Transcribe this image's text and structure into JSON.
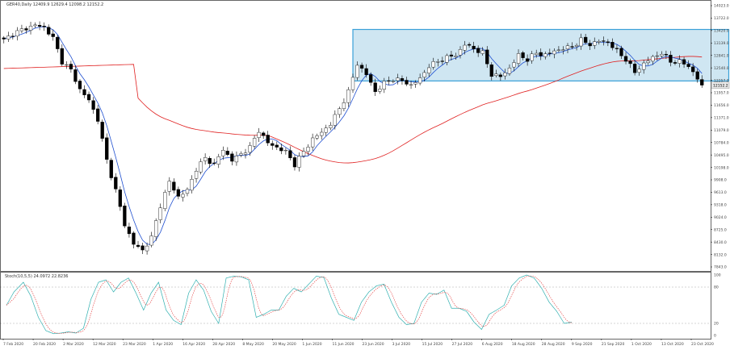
{
  "chart_data": [
    {
      "type": "candlestick",
      "panel": "price",
      "header": "GER40,Daily  12409.9 12629.4 12098.2 12152.2",
      "ylim": [
        7840,
        14080
      ],
      "y_ticks": [
        "14023.0",
        "13722.0",
        "13420.0",
        "13139.0",
        "12841.0",
        "12540.0",
        "12257.0",
        "11957.0",
        "11656.0",
        "11371.0",
        "11079.0",
        "10784.0",
        "10495.0",
        "10198.0",
        "9908.0",
        "9613.0",
        "9318.0",
        "9024.0",
        "8725.0",
        "8430.0",
        "8132.0",
        "7843.0"
      ],
      "x_labels": [
        "7 Feb 2020",
        "20 Feb 2020",
        "2 Mar 2020",
        "12 Mar 2020",
        "23 Mar 2020",
        "1 Apr 2020",
        "16 Apr 2020",
        "28 Apr 2020",
        "8 May 2020",
        "20 May 2020",
        "1 Jun 2020",
        "11 Jun 2020",
        "23 Jun 2020",
        "3 Jul 2020",
        "15 Jul 2020",
        "27 Jul 2020",
        "6 Aug 2020",
        "18 Aug 2020",
        "28 Aug 2020",
        "9 Sep 2020",
        "21 Sep 2020",
        "1 Oct 2020",
        "13 Oct 2020",
        "23 Oct 2020"
      ],
      "current_price_label": "12152.2",
      "close_anchors": [
        [
          0,
          13200
        ],
        [
          2,
          13350
        ],
        [
          5,
          13480
        ],
        [
          7,
          13550
        ],
        [
          9,
          13500
        ],
        [
          11,
          13250
        ],
        [
          13,
          12700
        ],
        [
          15,
          12500
        ],
        [
          17,
          12050
        ],
        [
          19,
          11800
        ],
        [
          21,
          11350
        ],
        [
          23,
          10400
        ],
        [
          25,
          9700
        ],
        [
          27,
          8900
        ],
        [
          29,
          8450
        ],
        [
          31,
          8300
        ],
        [
          33,
          8600
        ],
        [
          35,
          9350
        ],
        [
          37,
          9900
        ],
        [
          39,
          9550
        ],
        [
          41,
          9700
        ],
        [
          43,
          10200
        ],
        [
          45,
          10450
        ],
        [
          47,
          10300
        ],
        [
          49,
          10650
        ],
        [
          51,
          10400
        ],
        [
          53,
          10550
        ],
        [
          55,
          10700
        ],
        [
          57,
          11100
        ],
        [
          59,
          10800
        ],
        [
          61,
          10700
        ],
        [
          63,
          10600
        ],
        [
          65,
          10300
        ],
        [
          67,
          10600
        ],
        [
          69,
          10900
        ],
        [
          71,
          11050
        ],
        [
          73,
          11250
        ],
        [
          75,
          11600
        ],
        [
          77,
          12000
        ],
        [
          79,
          12650
        ],
        [
          81,
          12400
        ],
        [
          83,
          12000
        ],
        [
          85,
          12200
        ],
        [
          87,
          12300
        ],
        [
          89,
          12250
        ],
        [
          91,
          12150
        ],
        [
          93,
          12300
        ],
        [
          95,
          12600
        ],
        [
          97,
          12700
        ],
        [
          99,
          12800
        ],
        [
          101,
          12850
        ],
        [
          103,
          13100
        ],
        [
          105,
          13000
        ],
        [
          107,
          12900
        ],
        [
          109,
          12400
        ],
        [
          111,
          12350
        ],
        [
          113,
          12550
        ],
        [
          115,
          12850
        ],
        [
          117,
          12750
        ],
        [
          119,
          12900
        ],
        [
          121,
          12850
        ],
        [
          123,
          12950
        ],
        [
          125,
          13000
        ],
        [
          127,
          13050
        ],
        [
          129,
          13200
        ],
        [
          131,
          13100
        ],
        [
          133,
          13180
        ],
        [
          135,
          13150
        ],
        [
          137,
          12950
        ],
        [
          139,
          12750
        ],
        [
          141,
          12450
        ],
        [
          143,
          12650
        ],
        [
          145,
          12800
        ],
        [
          147,
          12900
        ],
        [
          149,
          12700
        ],
        [
          151,
          12700
        ],
        [
          153,
          12600
        ],
        [
          155,
          12300
        ],
        [
          156,
          12152.2
        ]
      ],
      "moving_averages": [
        {
          "type": "slow",
          "color": "#e02020"
        },
        {
          "type": "fast",
          "color": "#2050d0"
        }
      ],
      "candle_color": "#000000",
      "highlight_zone": {
        "fill": "#cfe6f2",
        "stroke": "#3aa0d8",
        "y_range": [
          12250,
          13450
        ],
        "x_range_bars": [
          79,
          156
        ]
      }
    },
    {
      "type": "line",
      "panel": "stochastic",
      "header": "Stoch(10,5,5) 24.0972 22.8236",
      "ylim": [
        0,
        100
      ],
      "y_ticks": [
        "100",
        "80",
        "20",
        "0"
      ],
      "levels": [
        20,
        80
      ],
      "series": [
        {
          "name": "main",
          "color": "#30b0b0"
        },
        {
          "name": "signal",
          "color": "#e03030"
        }
      ],
      "anchors": [
        [
          0,
          50
        ],
        [
          4,
          72
        ],
        [
          9,
          88
        ],
        [
          13,
          65
        ],
        [
          17,
          30
        ],
        [
          21,
          8
        ],
        [
          25,
          3
        ],
        [
          29,
          4
        ],
        [
          33,
          6
        ],
        [
          37,
          4
        ],
        [
          41,
          12
        ],
        [
          45,
          60
        ],
        [
          49,
          88
        ],
        [
          53,
          92
        ],
        [
          57,
          72
        ],
        [
          61,
          88
        ],
        [
          65,
          95
        ],
        [
          69,
          70
        ],
        [
          73,
          42
        ],
        [
          77,
          70
        ],
        [
          81,
          88
        ],
        [
          85,
          42
        ],
        [
          89,
          25
        ],
        [
          93,
          18
        ],
        [
          97,
          70
        ],
        [
          101,
          92
        ],
        [
          105,
          75
        ],
        [
          109,
          40
        ],
        [
          113,
          20
        ],
        [
          117,
          95
        ],
        [
          121,
          98
        ],
        [
          125,
          97
        ],
        [
          129,
          92
        ],
        [
          133,
          30
        ],
        [
          137,
          35
        ],
        [
          141,
          42
        ],
        [
          145,
          42
        ],
        [
          149,
          65
        ],
        [
          153,
          78
        ],
        [
          157,
          72
        ],
        [
          161,
          85
        ],
        [
          165,
          98
        ],
        [
          169,
          96
        ],
        [
          173,
          62
        ],
        [
          177,
          35
        ],
        [
          181,
          30
        ],
        [
          185,
          25
        ],
        [
          189,
          55
        ],
        [
          193,
          72
        ],
        [
          197,
          82
        ],
        [
          201,
          85
        ],
        [
          205,
          55
        ],
        [
          209,
          30
        ],
        [
          213,
          18
        ],
        [
          217,
          20
        ],
        [
          221,
          55
        ],
        [
          225,
          70
        ],
        [
          229,
          68
        ],
        [
          233,
          75
        ],
        [
          237,
          45
        ],
        [
          241,
          45
        ],
        [
          245,
          40
        ],
        [
          249,
          22
        ],
        [
          253,
          10
        ],
        [
          257,
          35
        ],
        [
          261,
          42
        ],
        [
          265,
          50
        ],
        [
          269,
          82
        ],
        [
          273,
          95
        ],
        [
          277,
          100
        ],
        [
          281,
          95
        ],
        [
          285,
          78
        ],
        [
          289,
          55
        ],
        [
          293,
          40
        ],
        [
          297,
          20
        ],
        [
          301,
          22
        ]
      ]
    }
  ]
}
